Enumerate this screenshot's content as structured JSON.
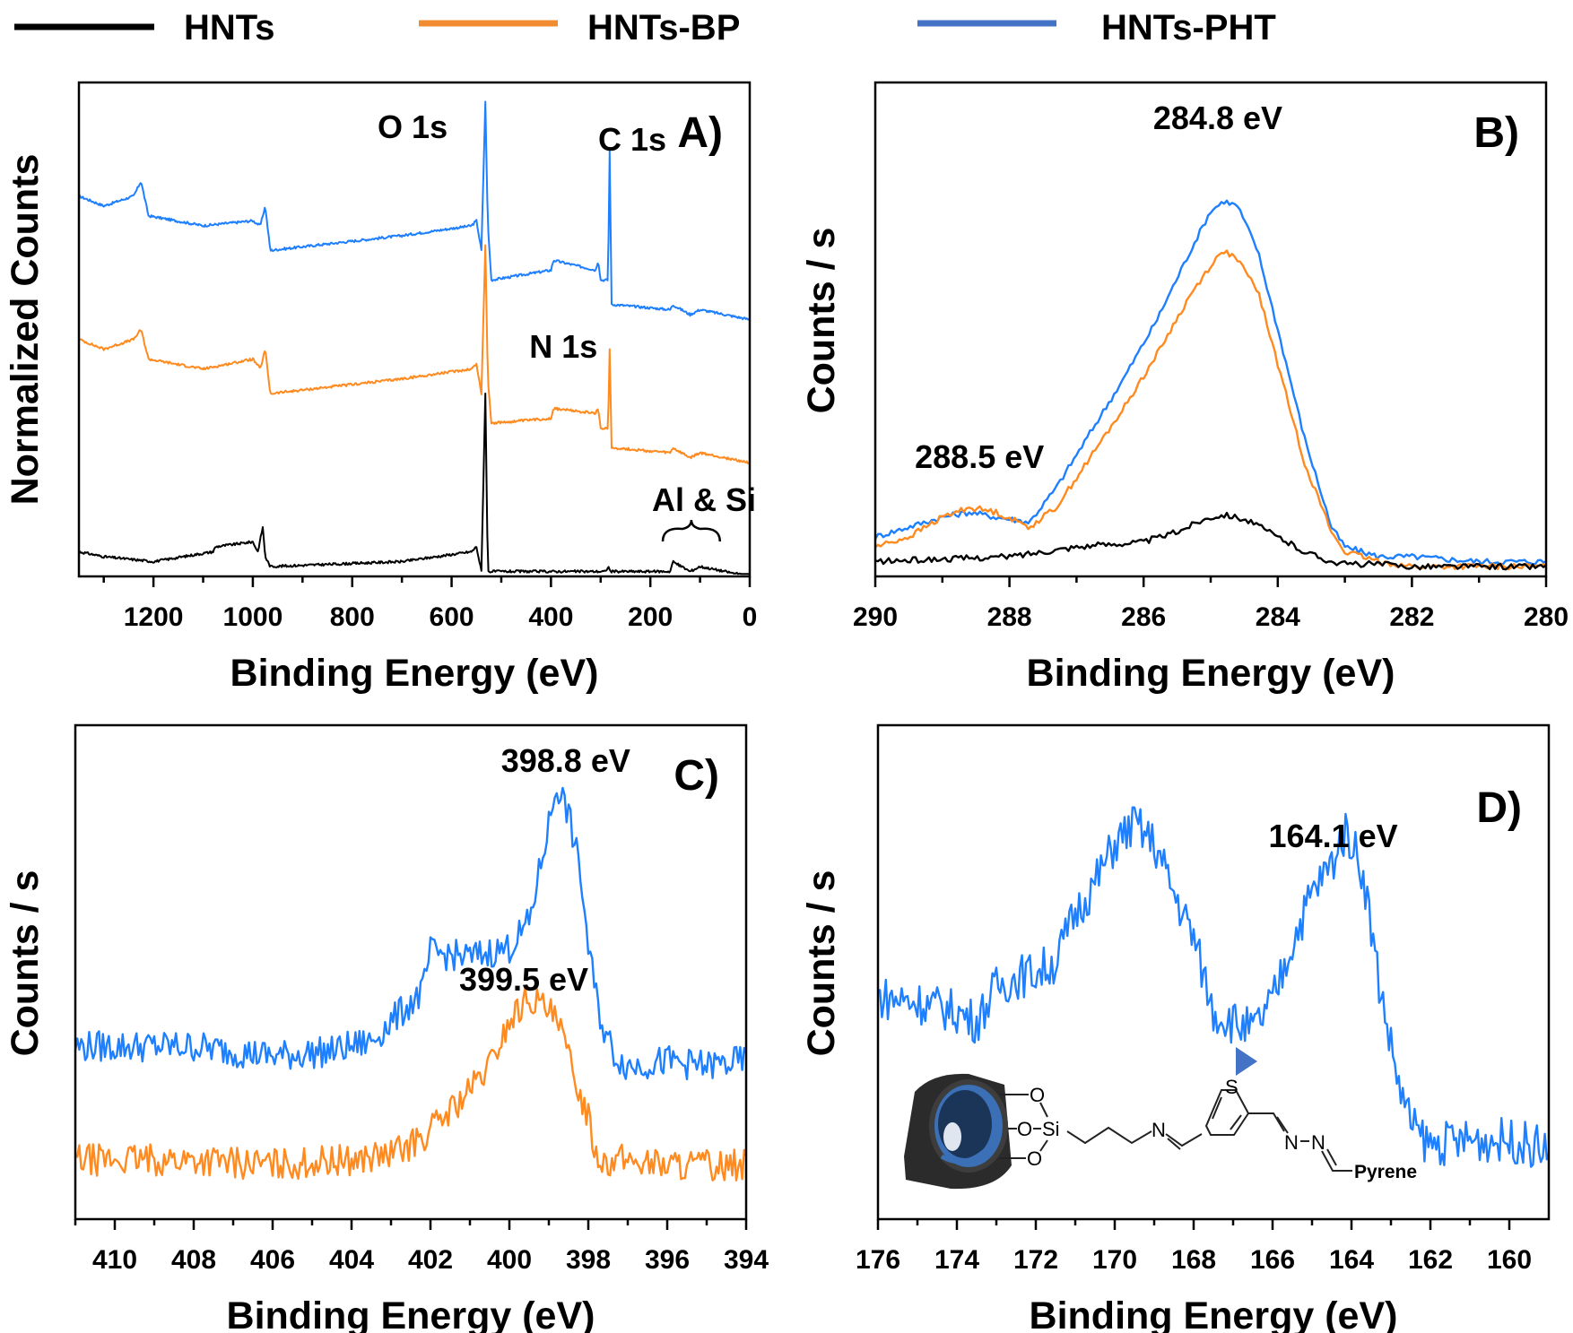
{
  "legend": {
    "entries": [
      {
        "label": "HNTs",
        "color": "#000000"
      },
      {
        "label": "HNTs-BP",
        "color": "#F28C33"
      },
      {
        "label": "HNTs-PHT",
        "color": "#4472C4"
      }
    ]
  },
  "colors": {
    "HNTs": "#000000",
    "HNTs-BP": "#FF8A1F",
    "HNTs-PHT": "#1E7FFF",
    "frame": "#000000",
    "accent_marker": "#4472C4"
  },
  "chart_data": [
    {
      "id": "A",
      "panel_label": "A)",
      "type": "line",
      "title": "",
      "xlabel": "Binding Energy (eV)",
      "ylabel": "Normalized Counts",
      "xlim": [
        1350,
        0
      ],
      "ylim": [
        0,
        100
      ],
      "xticks": [
        1200,
        1000,
        800,
        600,
        400,
        200,
        0
      ],
      "xtick_labels": [
        "1200",
        "1000",
        "800",
        "600",
        "400",
        "200",
        "0"
      ],
      "minor_xticks": [
        1300,
        1100,
        900,
        700,
        500,
        300,
        100
      ],
      "yticks_shown": false,
      "annotations": [
        {
          "text": "O 1s",
          "x": 590,
          "y": 94
        },
        {
          "text": "C 1s",
          "x": 240,
          "y": 85
        },
        {
          "text": "N 1s",
          "x": 375,
          "y": 40
        },
        {
          "text": "Al & Si",
          "x": 110,
          "y": 10
        }
      ],
      "bracket": {
        "x_from": 175,
        "x_to": 60,
        "label": "Al & Si"
      },
      "series": [
        {
          "name": "HNTs-PHT",
          "x": [
            1350,
            1300,
            1240,
            1225,
            1210,
            1100,
            1000,
            985,
            975,
            965,
            700,
            560,
            550,
            540,
            532,
            527,
            520,
            400,
            395,
            310,
            305,
            300,
            290,
            285,
            282,
            278,
            270,
            160,
            155,
            120,
            100,
            0
          ],
          "y": [
            77,
            75,
            77,
            80,
            73,
            71,
            72,
            71,
            75,
            66,
            69,
            71,
            72,
            66,
            96,
            71,
            60,
            62,
            64,
            62,
            64,
            60,
            60,
            60,
            86,
            55,
            55,
            54,
            55,
            53,
            54,
            52
          ]
        },
        {
          "name": "HNTs-BP",
          "x": [
            1350,
            1300,
            1240,
            1225,
            1210,
            1100,
            1000,
            985,
            975,
            965,
            700,
            560,
            550,
            540,
            532,
            527,
            520,
            400,
            395,
            310,
            305,
            300,
            290,
            285,
            282,
            278,
            270,
            160,
            155,
            120,
            100,
            0
          ],
          "y": [
            48,
            46,
            48,
            50,
            44,
            42,
            44,
            42,
            46,
            37,
            40,
            42,
            43,
            37,
            67,
            40,
            31,
            32,
            34,
            33,
            34,
            30,
            30,
            30,
            46,
            26,
            26,
            25,
            26,
            24,
            25,
            23
          ]
        },
        {
          "name": "HNTs",
          "x": [
            1350,
            1300,
            1200,
            1080,
            1075,
            1000,
            990,
            980,
            975,
            965,
            700,
            560,
            550,
            540,
            532,
            527,
            520,
            400,
            290,
            285,
            280,
            160,
            155,
            120,
            100,
            0
          ],
          "y": [
            5,
            4,
            3,
            5,
            6,
            7,
            5,
            10,
            4,
            2,
            3,
            5,
            6,
            1,
            37,
            1,
            1,
            1,
            1,
            2,
            1,
            1,
            3,
            1,
            2,
            0
          ]
        }
      ]
    },
    {
      "id": "B",
      "panel_label": "B)",
      "type": "line",
      "title": "",
      "xlabel": "Binding Energy (eV)",
      "ylabel": "Counts / s",
      "xlim": [
        290,
        280
      ],
      "ylim": [
        0,
        100
      ],
      "xticks": [
        290,
        288,
        286,
        284,
        282,
        280
      ],
      "xtick_labels": [
        "290",
        "288",
        "286",
        "284",
        "282",
        "280"
      ],
      "minor_xticks": [
        289,
        287,
        285,
        283,
        281
      ],
      "yticks_shown": false,
      "annotations": [
        {
          "text": "284.8 eV",
          "x": 284.8,
          "y": 92
        },
        {
          "text": "288.5 eV",
          "x": 288.5,
          "y": 22
        }
      ],
      "series": [
        {
          "name": "HNTs-PHT",
          "x": [
            290,
            289.5,
            289,
            288.6,
            288.2,
            287.7,
            287.3,
            286.8,
            286.3,
            285.8,
            285.3,
            285.0,
            284.8,
            284.6,
            284.3,
            284.0,
            283.6,
            283.2,
            283.0,
            282.5,
            282.0,
            281.0,
            280.0
          ],
          "y": [
            8,
            10,
            12,
            13,
            12,
            11,
            18,
            29,
            40,
            52,
            66,
            74,
            76,
            75,
            66,
            50,
            28,
            10,
            6,
            4,
            4,
            3,
            3
          ]
        },
        {
          "name": "HNTs-BP",
          "x": [
            290,
            289.5,
            289,
            288.6,
            288.2,
            287.7,
            287.3,
            286.8,
            286.3,
            285.8,
            285.3,
            285.0,
            284.8,
            284.6,
            284.3,
            284.0,
            283.6,
            283.2,
            283.0,
            282.5,
            282.0,
            281.0,
            280.0
          ],
          "y": [
            6,
            8,
            12,
            14,
            13,
            10,
            14,
            24,
            34,
            45,
            57,
            63,
            66,
            64,
            58,
            43,
            23,
            9,
            5,
            3,
            2,
            2,
            2
          ]
        },
        {
          "name": "HNTs",
          "x": [
            290,
            289,
            288,
            287.5,
            287,
            286.5,
            286,
            285.5,
            285.2,
            285.0,
            284.8,
            284.6,
            284.4,
            284.0,
            283.6,
            283.2,
            283,
            282.5,
            282,
            281,
            280
          ],
          "y": [
            3,
            3.5,
            4,
            5,
            6,
            6.5,
            7,
            9,
            11,
            12,
            12.5,
            12,
            11,
            8,
            5,
            3,
            2.5,
            2.5,
            2,
            2,
            2
          ]
        }
      ]
    },
    {
      "id": "C",
      "panel_label": "C)",
      "type": "line",
      "title": "",
      "xlabel": "Binding Energy (eV)",
      "ylabel": "Counts / s",
      "xlim": [
        411,
        394
      ],
      "ylim": [
        0,
        100
      ],
      "xticks": [
        410,
        408,
        406,
        404,
        402,
        400,
        398,
        396,
        394
      ],
      "xtick_labels": [
        "410",
        "408",
        "406",
        "404",
        "402",
        "400",
        "398",
        "396",
        "394"
      ],
      "minor_xticks": [
        411,
        409,
        407,
        405,
        403,
        401,
        399,
        397,
        395
      ],
      "yticks_shown": false,
      "annotations": [
        {
          "text": "398.8 eV",
          "x": 398.8,
          "y": 96
        },
        {
          "text": "399.5 eV",
          "x": 399.5,
          "y": 53
        }
      ],
      "series": [
        {
          "name": "HNTs-PHT",
          "x": [
            411,
            408,
            406,
            404.5,
            403.5,
            403,
            402.2,
            402,
            401,
            400.5,
            400,
            399.5,
            399,
            398.8,
            398.5,
            398.2,
            398,
            397.8,
            397.6,
            397.3,
            397,
            396,
            395,
            394
          ],
          "y": [
            35,
            35,
            33,
            34,
            36,
            40,
            46,
            54,
            53,
            54,
            55,
            60,
            80,
            88,
            82,
            70,
            55,
            45,
            38,
            33,
            31,
            32,
            31,
            32
          ]
        },
        {
          "name": "HNTs-BP",
          "x": [
            411,
            408,
            406,
            404,
            403,
            402.5,
            402,
            401.5,
            401,
            400.5,
            400,
            399.5,
            399,
            398.7,
            398.4,
            398,
            397.8,
            397.5,
            397,
            396,
            395,
            394
          ],
          "y": [
            12,
            12,
            11,
            12,
            13,
            15,
            18,
            22,
            26,
            31,
            40,
            45,
            42,
            38,
            30,
            21,
            13,
            12,
            12,
            11,
            11,
            11
          ]
        }
      ]
    },
    {
      "id": "D",
      "panel_label": "D)",
      "type": "line",
      "title": "",
      "xlabel": "Binding Energy (eV)",
      "ylabel": "Counts / s",
      "xlim": [
        176,
        159
      ],
      "ylim": [
        0,
        100
      ],
      "xticks": [
        176,
        174,
        172,
        170,
        168,
        166,
        164,
        162,
        160
      ],
      "xtick_labels": [
        "176",
        "174",
        "172",
        "170",
        "168",
        "166",
        "164",
        "162",
        "160"
      ],
      "minor_xticks": [
        175,
        173,
        171,
        169,
        167,
        165,
        163,
        161
      ],
      "yticks_shown": false,
      "annotations": [
        {
          "text": "164.1 eV",
          "x": 164.1,
          "y": 86
        }
      ],
      "series": [
        {
          "name": "HNTs-PHT",
          "x": [
            176,
            175,
            174,
            173.5,
            173,
            172.5,
            172,
            171.5,
            171,
            170.5,
            170,
            169.5,
            169,
            168.5,
            168,
            167.5,
            167,
            166.5,
            166,
            165.5,
            165,
            164.5,
            164.2,
            164,
            163.7,
            163.3,
            163,
            162.7,
            162.4,
            162,
            161,
            160,
            159
          ],
          "y": [
            45,
            44,
            42,
            40,
            47,
            49,
            50,
            52,
            62,
            68,
            76,
            80,
            76,
            66,
            57,
            42,
            40,
            38,
            44,
            56,
            66,
            72,
            78,
            77,
            70,
            48,
            35,
            24,
            18,
            15,
            16,
            16,
            14
          ]
        }
      ]
    }
  ],
  "inset_structure": {
    "labels": {
      "o_top": "O",
      "o_mid": "O",
      "si": "Si",
      "o_bottom": "O",
      "imine_n": "N",
      "sulfur": "S",
      "hydrazone_n1": "N",
      "hydrazone_n2": "N",
      "pyrene": "Pyrene"
    },
    "description": "HNT tube grafted via Si-O linkage with propyl imine thiophene hydrazone pyrene chain; triangle marker points to sulfur"
  }
}
